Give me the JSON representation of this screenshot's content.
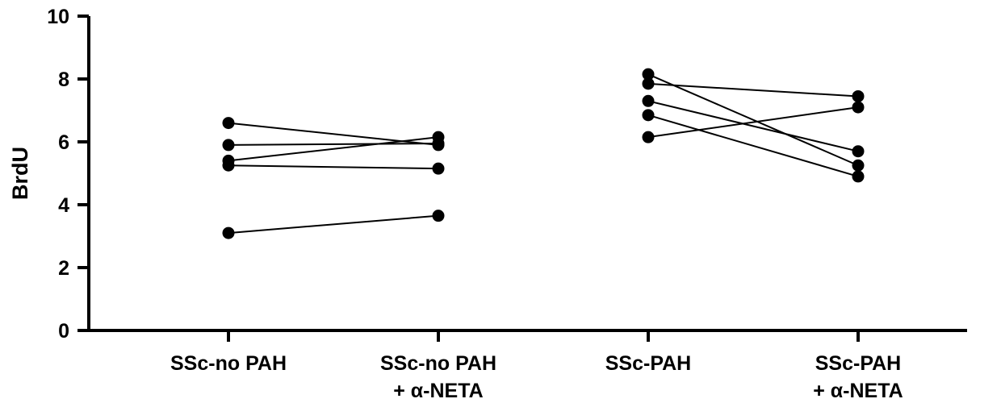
{
  "chart_data": {
    "type": "scatter",
    "style": "paired before-after plot",
    "ylabel": "BrdU",
    "xlabel": "",
    "ylim": [
      0,
      10
    ],
    "yticks": [
      0,
      2,
      4,
      6,
      8,
      10
    ],
    "grid": false,
    "categories": [
      {
        "lines": [
          "SSc-no PAH"
        ]
      },
      {
        "lines": [
          "SSc-no PAH",
          "+ α-NETA"
        ]
      },
      {
        "lines": [
          "SSc-PAH"
        ]
      },
      {
        "lines": [
          "SSc-PAH",
          "+ α-NETA"
        ]
      }
    ],
    "pairs": [
      {
        "from": 0,
        "to": 1,
        "values": [
          [
            6.6,
            5.9
          ],
          [
            5.9,
            5.95
          ],
          [
            5.4,
            6.15
          ],
          [
            5.25,
            5.15
          ],
          [
            3.1,
            3.65
          ]
        ]
      },
      {
        "from": 2,
        "to": 3,
        "values": [
          [
            8.15,
            5.25
          ],
          [
            7.85,
            7.45
          ],
          [
            7.3,
            5.7
          ],
          [
            6.85,
            4.9
          ],
          [
            6.15,
            7.1
          ]
        ]
      }
    ],
    "colors": {
      "marker": "#000000",
      "line": "#000000"
    }
  }
}
